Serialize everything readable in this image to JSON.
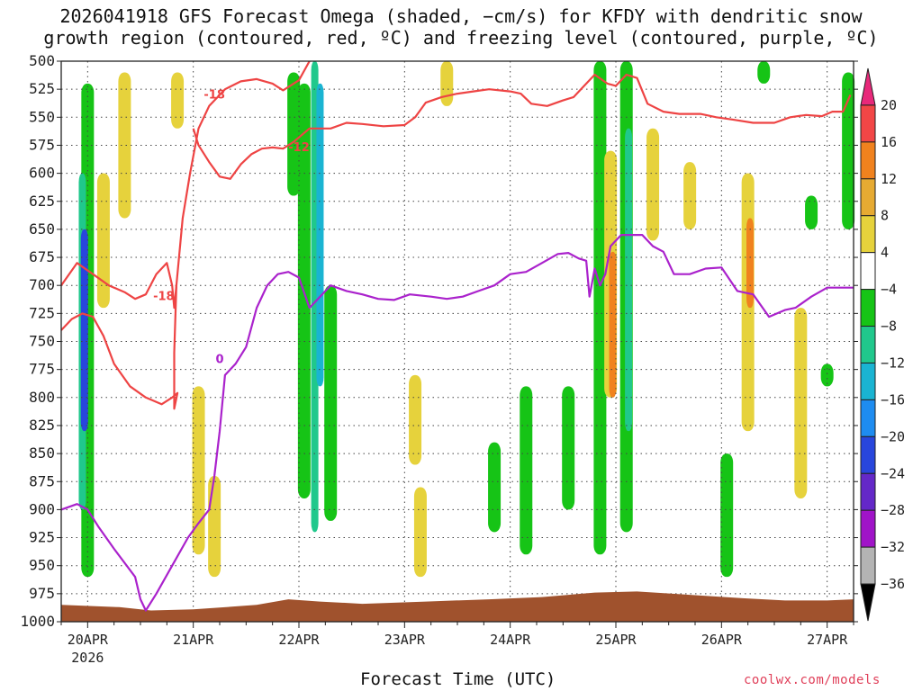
{
  "title_line1": "2026041918 GFS Forecast Omega (shaded, −cm/s) for KFDY with dendritic snow",
  "title_line2": "growth region (contoured, red, ºC) and freezing level (contoured, purple, ºC)",
  "credit": "coolwx.com/models",
  "chart_data": {
    "type": "heatmap",
    "xlabel": "Forecast Time (UTC)",
    "ylabel": "",
    "x_ticks": [
      {
        "day": 20,
        "label": "20APR",
        "sub": "2026"
      },
      {
        "day": 21,
        "label": "21APR"
      },
      {
        "day": 22,
        "label": "22APR"
      },
      {
        "day": 23,
        "label": "23APR"
      },
      {
        "day": 24,
        "label": "24APR"
      },
      {
        "day": 25,
        "label": "25APR"
      },
      {
        "day": 26,
        "label": "26APR"
      },
      {
        "day": 27,
        "label": "27APR"
      }
    ],
    "xlim": [
      19.75,
      27.25
    ],
    "y_levels": [
      500,
      525,
      550,
      575,
      600,
      625,
      650,
      675,
      700,
      725,
      750,
      775,
      800,
      825,
      850,
      875,
      900,
      925,
      950,
      975,
      1000
    ],
    "ylim": [
      500,
      1000
    ],
    "grid": true,
    "colorbar": {
      "labels": [
        "20",
        "16",
        "12",
        "8",
        "4",
        "−4",
        "−8",
        "−12",
        "−16",
        "−20",
        "−24",
        "−28",
        "−32",
        "−36"
      ],
      "colors": [
        "#e8287a",
        "#f24646",
        "#f0821e",
        "#e6aa32",
        "#e6d23c",
        "#ffffff",
        "#16c416",
        "#20c88c",
        "#1ab4d2",
        "#1e8cf0",
        "#2846dc",
        "#6428c8",
        "#a014c8",
        "#b4b4b4",
        "#000000"
      ]
    },
    "shading": [
      {
        "x": 20.0,
        "p1": 520,
        "p2": 960,
        "value": -8
      },
      {
        "x": 19.95,
        "p1": 600,
        "p2": 900,
        "value": -12
      },
      {
        "x": 19.97,
        "p1": 650,
        "p2": 830,
        "value": -24
      },
      {
        "x": 20.15,
        "p1": 600,
        "p2": 720,
        "value": 4
      },
      {
        "x": 20.35,
        "p1": 510,
        "p2": 640,
        "value": 4
      },
      {
        "x": 20.85,
        "p1": 510,
        "p2": 560,
        "value": 4
      },
      {
        "x": 21.05,
        "p1": 790,
        "p2": 940,
        "value": 4
      },
      {
        "x": 21.2,
        "p1": 870,
        "p2": 960,
        "value": 4
      },
      {
        "x": 21.95,
        "p1": 510,
        "p2": 620,
        "value": -8
      },
      {
        "x": 22.05,
        "p1": 520,
        "p2": 890,
        "value": -8
      },
      {
        "x": 22.15,
        "p1": 500,
        "p2": 920,
        "value": -12
      },
      {
        "x": 22.2,
        "p1": 520,
        "p2": 790,
        "value": -16
      },
      {
        "x": 22.3,
        "p1": 700,
        "p2": 910,
        "value": -8
      },
      {
        "x": 23.1,
        "p1": 780,
        "p2": 860,
        "value": 4
      },
      {
        "x": 23.15,
        "p1": 880,
        "p2": 960,
        "value": 4
      },
      {
        "x": 23.4,
        "p1": 500,
        "p2": 540,
        "value": 4
      },
      {
        "x": 23.85,
        "p1": 840,
        "p2": 920,
        "value": -8
      },
      {
        "x": 24.15,
        "p1": 790,
        "p2": 940,
        "value": -8
      },
      {
        "x": 24.55,
        "p1": 790,
        "p2": 900,
        "value": -8
      },
      {
        "x": 24.85,
        "p1": 500,
        "p2": 940,
        "value": -8
      },
      {
        "x": 24.95,
        "p1": 580,
        "p2": 800,
        "value": 4
      },
      {
        "x": 24.97,
        "p1": 670,
        "p2": 800,
        "value": 12
      },
      {
        "x": 25.1,
        "p1": 500,
        "p2": 920,
        "value": -8
      },
      {
        "x": 25.12,
        "p1": 560,
        "p2": 830,
        "value": -12
      },
      {
        "x": 25.35,
        "p1": 560,
        "p2": 660,
        "value": 4
      },
      {
        "x": 25.7,
        "p1": 590,
        "p2": 650,
        "value": 4
      },
      {
        "x": 26.05,
        "p1": 850,
        "p2": 960,
        "value": -8
      },
      {
        "x": 26.25,
        "p1": 600,
        "p2": 830,
        "value": 4
      },
      {
        "x": 26.27,
        "p1": 640,
        "p2": 720,
        "value": 12
      },
      {
        "x": 26.4,
        "p1": 500,
        "p2": 520,
        "value": -8
      },
      {
        "x": 26.75,
        "p1": 720,
        "p2": 890,
        "value": 4
      },
      {
        "x": 26.85,
        "p1": 620,
        "p2": 650,
        "value": -8
      },
      {
        "x": 27.0,
        "p1": 770,
        "p2": 790,
        "value": -8
      },
      {
        "x": 27.2,
        "p1": 510,
        "p2": 650,
        "value": -8
      }
    ],
    "contours": [
      {
        "name": "-18",
        "color": "#ee4444",
        "label": "-18",
        "label_at": [
          20.72,
          710
        ],
        "points": [
          [
            19.75,
            700
          ],
          [
            19.9,
            680
          ],
          [
            20.05,
            690
          ],
          [
            20.2,
            700
          ],
          [
            20.35,
            706
          ],
          [
            20.45,
            712
          ],
          [
            20.55,
            708
          ],
          [
            20.65,
            690
          ],
          [
            20.75,
            680
          ],
          [
            20.8,
            700
          ],
          [
            20.82,
            720
          ],
          [
            20.84,
            700
          ],
          [
            20.9,
            640
          ],
          [
            20.97,
            600
          ],
          [
            21.05,
            560
          ],
          [
            21.15,
            540
          ],
          [
            21.3,
            525
          ],
          [
            21.45,
            518
          ],
          [
            21.6,
            516
          ],
          [
            21.75,
            520
          ],
          [
            21.85,
            526
          ],
          [
            22.0,
            517
          ],
          [
            22.1,
            500
          ]
        ]
      },
      {
        "name": "-18b",
        "color": "#ee4444",
        "label": "-18",
        "label_at": [
          21.2,
          530
        ],
        "points": [
          [
            19.75,
            740
          ],
          [
            19.85,
            730
          ],
          [
            19.95,
            725
          ],
          [
            20.05,
            728
          ],
          [
            20.15,
            745
          ],
          [
            20.25,
            770
          ],
          [
            20.4,
            790
          ],
          [
            20.55,
            800
          ],
          [
            20.7,
            806
          ],
          [
            20.8,
            800
          ],
          [
            20.85,
            796
          ],
          [
            20.82,
            810
          ],
          [
            20.82,
            760
          ],
          [
            20.84,
            700
          ]
        ]
      },
      {
        "name": "-12",
        "color": "#ee4444",
        "label": "-12",
        "label_at": [
          22.0,
          577
        ],
        "points": [
          [
            21.0,
            560
          ],
          [
            21.05,
            575
          ],
          [
            21.15,
            590
          ],
          [
            21.25,
            603
          ],
          [
            21.35,
            605
          ],
          [
            21.45,
            592
          ],
          [
            21.55,
            583
          ],
          [
            21.65,
            578
          ],
          [
            21.75,
            577
          ],
          [
            21.85,
            578
          ],
          [
            21.95,
            572
          ],
          [
            22.1,
            560
          ],
          [
            22.3,
            560
          ],
          [
            22.45,
            555
          ],
          [
            22.6,
            556
          ],
          [
            22.8,
            558
          ],
          [
            23.0,
            557
          ],
          [
            23.1,
            550
          ],
          [
            23.2,
            537
          ],
          [
            23.35,
            532
          ],
          [
            23.5,
            529
          ],
          [
            23.65,
            527
          ],
          [
            23.8,
            525
          ],
          [
            24.0,
            527
          ],
          [
            24.1,
            529
          ],
          [
            24.2,
            538
          ],
          [
            24.35,
            540
          ],
          [
            24.5,
            535
          ],
          [
            24.6,
            532
          ],
          [
            24.7,
            522
          ],
          [
            24.8,
            512
          ],
          [
            24.92,
            520
          ],
          [
            25.0,
            522
          ],
          [
            25.1,
            512
          ],
          [
            25.2,
            515
          ],
          [
            25.3,
            538
          ],
          [
            25.45,
            545
          ],
          [
            25.6,
            547
          ],
          [
            25.8,
            547
          ],
          [
            25.95,
            550
          ],
          [
            26.1,
            552
          ],
          [
            26.3,
            555
          ],
          [
            26.5,
            555
          ],
          [
            26.65,
            550
          ],
          [
            26.8,
            548
          ],
          [
            26.95,
            549
          ],
          [
            27.05,
            545
          ],
          [
            27.15,
            545
          ],
          [
            27.22,
            530
          ]
        ]
      },
      {
        "name": "0",
        "color": "#aa22cc",
        "label": "0",
        "label_at": [
          21.25,
          766
        ],
        "points": [
          [
            19.75,
            900
          ],
          [
            19.9,
            895
          ],
          [
            20.0,
            900
          ],
          [
            20.1,
            915
          ],
          [
            20.25,
            935
          ],
          [
            20.45,
            960
          ],
          [
            20.5,
            980
          ],
          [
            20.55,
            990
          ],
          [
            20.65,
            975
          ],
          [
            20.8,
            950
          ],
          [
            20.95,
            925
          ],
          [
            21.05,
            912
          ],
          [
            21.15,
            900
          ],
          [
            21.2,
            870
          ],
          [
            21.25,
            830
          ],
          [
            21.3,
            780
          ],
          [
            21.4,
            770
          ],
          [
            21.5,
            755
          ],
          [
            21.6,
            720
          ],
          [
            21.7,
            700
          ],
          [
            21.8,
            690
          ],
          [
            21.9,
            688
          ],
          [
            22.0,
            693
          ],
          [
            22.1,
            720
          ],
          [
            22.2,
            710
          ],
          [
            22.3,
            700
          ],
          [
            22.45,
            705
          ],
          [
            22.6,
            708
          ],
          [
            22.75,
            712
          ],
          [
            22.9,
            713
          ],
          [
            23.05,
            708
          ],
          [
            23.25,
            710
          ],
          [
            23.4,
            712
          ],
          [
            23.55,
            710
          ],
          [
            23.7,
            705
          ],
          [
            23.85,
            700
          ],
          [
            24.0,
            690
          ],
          [
            24.15,
            688
          ],
          [
            24.3,
            680
          ],
          [
            24.45,
            672
          ],
          [
            24.55,
            671
          ],
          [
            24.65,
            676
          ],
          [
            24.72,
            678
          ],
          [
            24.75,
            710
          ],
          [
            24.8,
            685
          ],
          [
            24.85,
            700
          ],
          [
            24.9,
            690
          ],
          [
            24.95,
            665
          ],
          [
            25.05,
            655
          ],
          [
            25.15,
            655
          ],
          [
            25.25,
            655
          ],
          [
            25.35,
            665
          ],
          [
            25.45,
            670
          ],
          [
            25.55,
            690
          ],
          [
            25.7,
            690
          ],
          [
            25.85,
            685
          ],
          [
            26.0,
            684
          ],
          [
            26.15,
            705
          ],
          [
            26.3,
            708
          ],
          [
            26.45,
            728
          ],
          [
            26.6,
            722
          ],
          [
            26.7,
            720
          ],
          [
            26.85,
            710
          ],
          [
            27.0,
            702
          ],
          [
            27.25,
            702
          ]
        ]
      }
    ]
  }
}
